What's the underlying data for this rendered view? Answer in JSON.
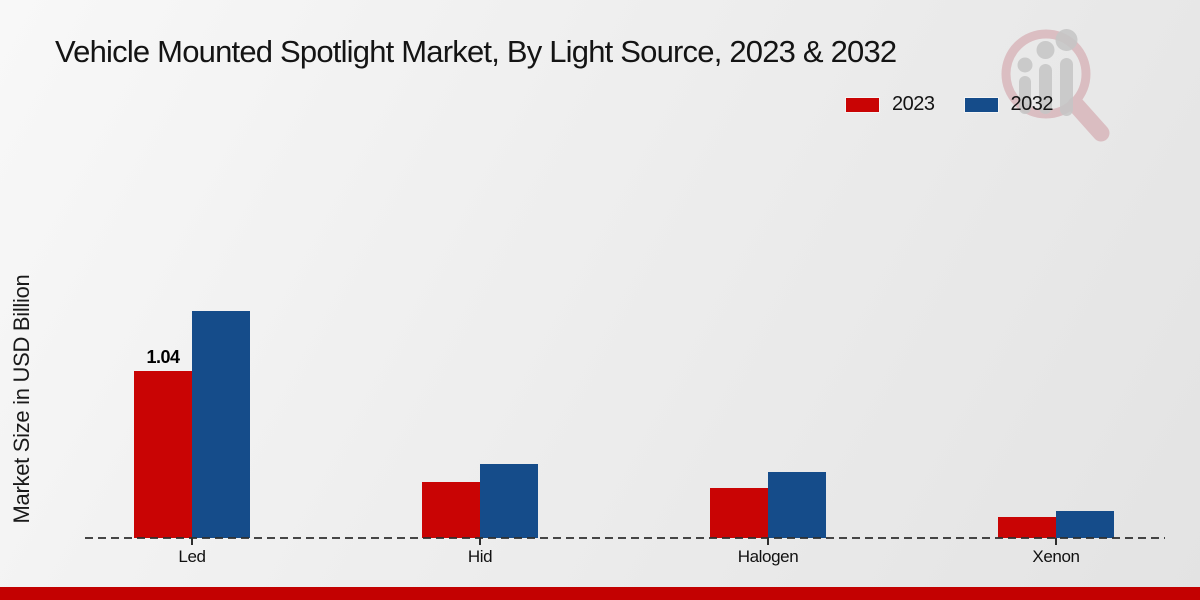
{
  "title": "Vehicle Mounted Spotlight Market, By Light Source, 2023 & 2032",
  "ylabel": "Market Size in USD Billion",
  "legend": {
    "position": "top-right",
    "items": [
      {
        "label": "2023",
        "color": "#c90404"
      },
      {
        "label": "2032",
        "color": "#154c8a"
      }
    ]
  },
  "footer": {
    "bar_color": "#c30101"
  },
  "watermark": {
    "icon": "magnifier-bar-chart-logo"
  },
  "chart_data": {
    "type": "bar",
    "title": "Vehicle Mounted Spotlight Market, By Light Source, 2023 & 2032",
    "categories": [
      "Led",
      "Hid",
      "Halogen",
      "Xenon"
    ],
    "series": [
      {
        "name": "2023",
        "color": "#c90404",
        "values": [
          1.04,
          0.35,
          0.31,
          0.13
        ]
      },
      {
        "name": "2032",
        "color": "#154c8a",
        "values": [
          1.41,
          0.46,
          0.41,
          0.17
        ]
      }
    ],
    "bar_labels": [
      {
        "category": "Led",
        "series": "2023",
        "text": "1.04"
      }
    ],
    "xlabel": "",
    "ylabel": "Market Size in USD Billion",
    "ylim": [
      0,
      1.6
    ],
    "grid": false,
    "y_axis_ticks_visible": false,
    "baseline_style": "dashed",
    "legend_position": "top-right"
  }
}
